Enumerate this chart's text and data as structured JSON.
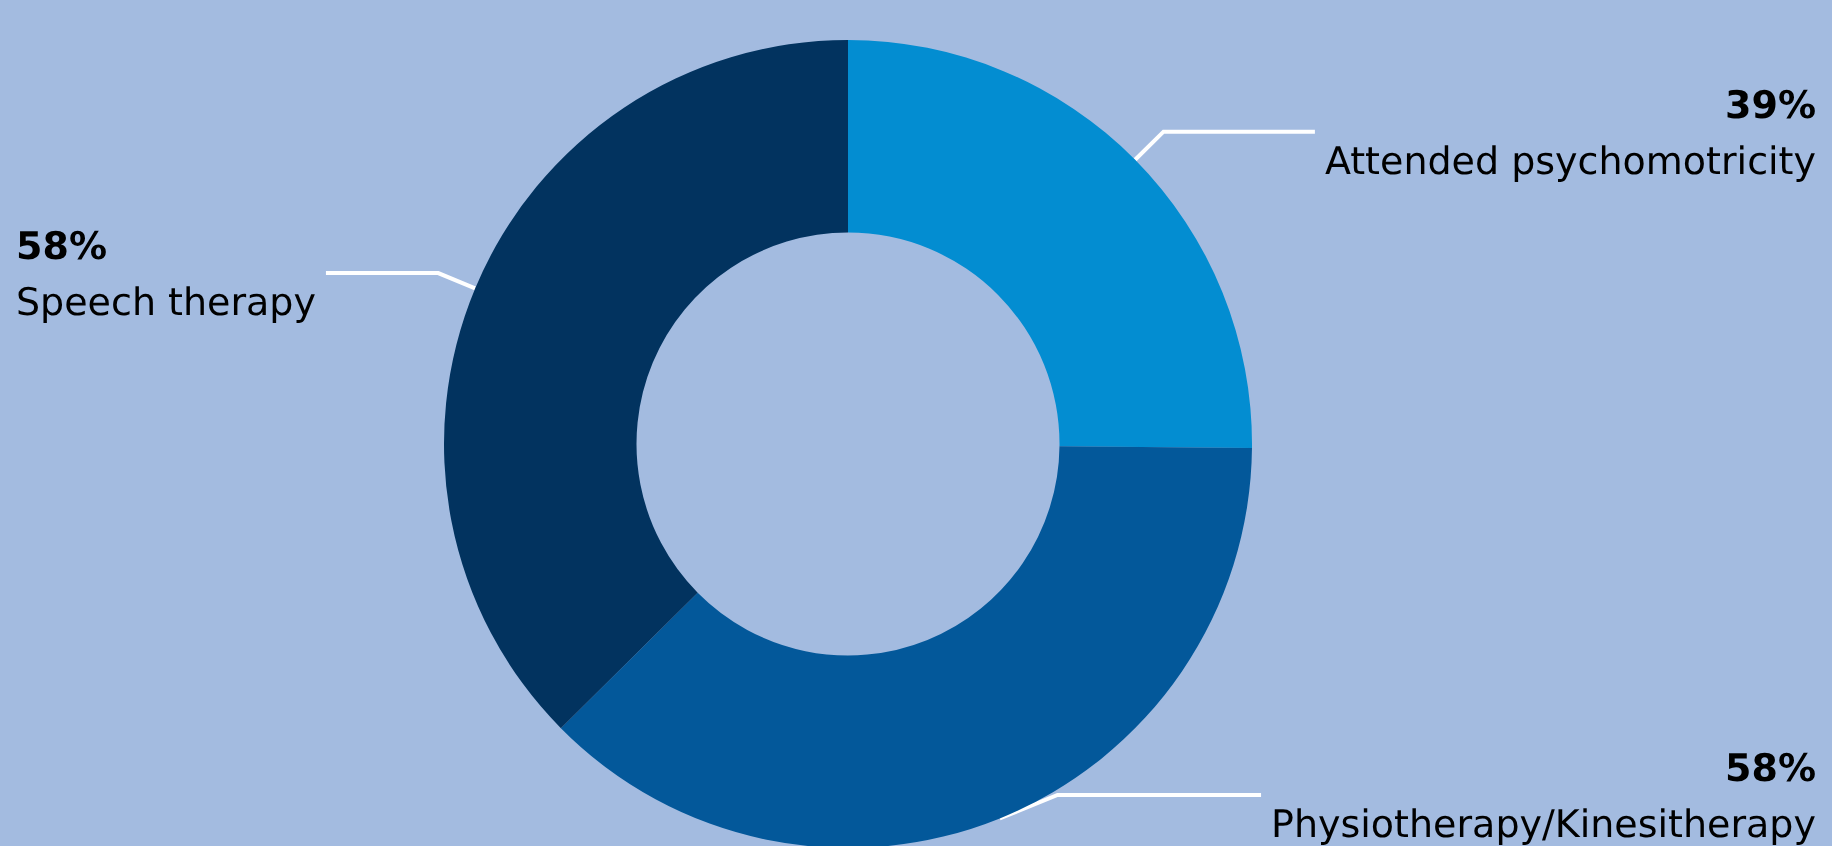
{
  "chart_data": {
    "type": "donut",
    "categories": [
      "Attended psychomotricity",
      "Physiotherapy/Kinesitherapy",
      "Speech therapy"
    ],
    "values": [
      39,
      58,
      58
    ],
    "colors": [
      "#038dd1",
      "#03589a",
      "#02335f"
    ],
    "value_labels": [
      "39%",
      "58%",
      "58%"
    ]
  }
}
